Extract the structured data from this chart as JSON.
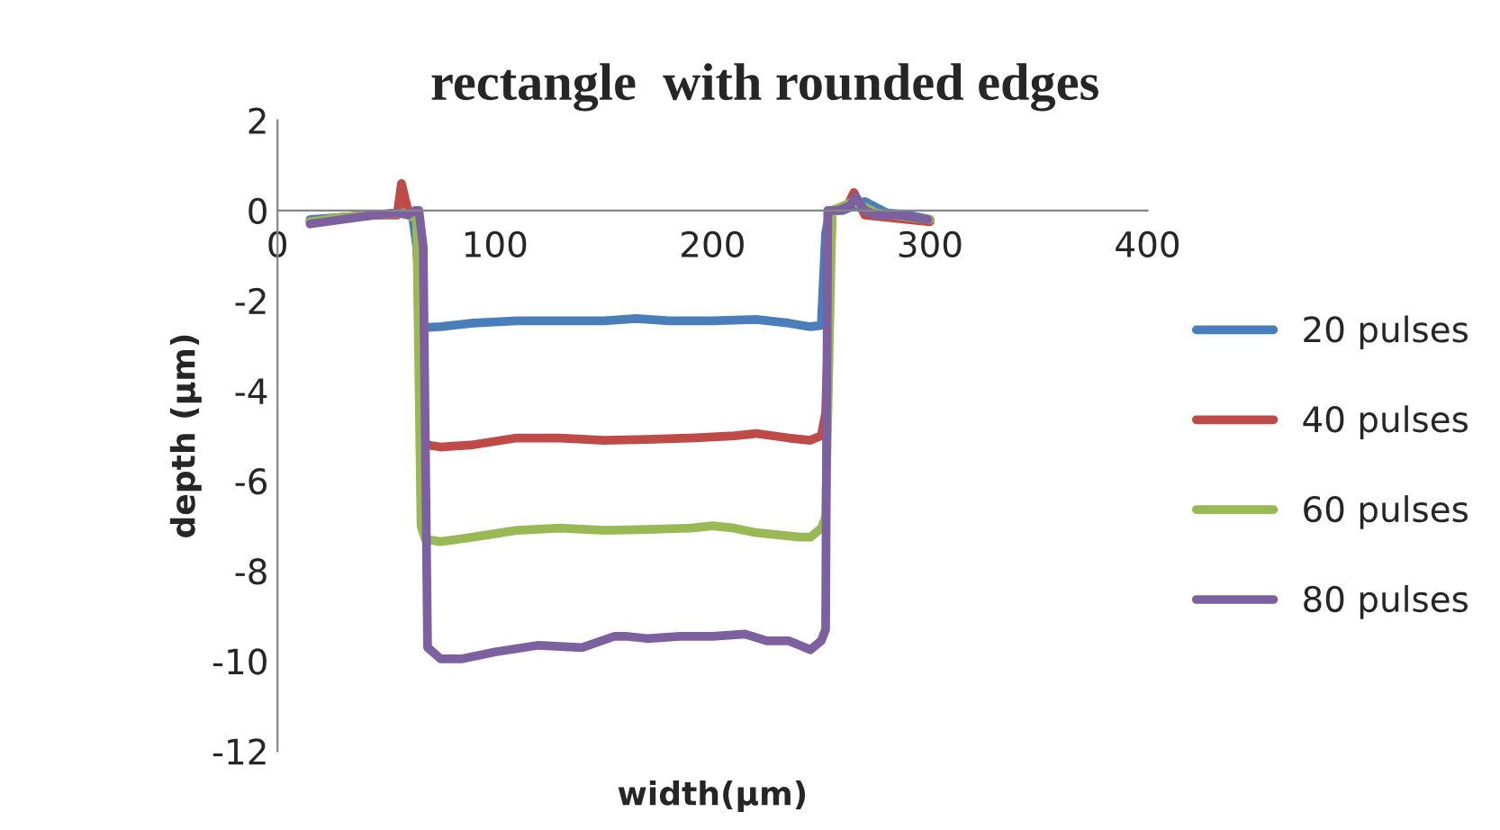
{
  "chart_data": {
    "type": "line",
    "title": "rectangle  with rounded edges",
    "xlabel": "width(µm)",
    "ylabel": "depth (µm)",
    "xlim": [
      0,
      400
    ],
    "xticks": [
      0,
      100,
      200,
      300,
      400
    ],
    "ylim": [
      -12,
      2
    ],
    "yticks": [
      -12,
      -10,
      -8,
      -6,
      -4,
      -2,
      0,
      2
    ],
    "grid": false,
    "legend": "right",
    "marker": "none",
    "line_style": "solid",
    "series": [
      {
        "name": "20 pulses",
        "color": "#4a7ebb",
        "x": [
          15,
          30,
          45,
          58,
          62,
          64,
          66,
          68,
          75,
          90,
          110,
          130,
          150,
          165,
          180,
          200,
          220,
          235,
          245,
          250,
          252,
          254,
          260,
          270,
          280,
          290,
          300
        ],
        "values": [
          -0.2,
          -0.15,
          -0.1,
          -0.05,
          -0.1,
          -0.8,
          -2.6,
          -2.6,
          -2.58,
          -2.5,
          -2.45,
          -2.45,
          -2.45,
          -2.4,
          -2.45,
          -2.45,
          -2.42,
          -2.5,
          -2.58,
          -2.55,
          -0.5,
          0,
          0,
          0.2,
          -0.05,
          -0.1,
          -0.2
        ]
      },
      {
        "name": "40 pulses",
        "color": "#be4b48",
        "x": [
          15,
          30,
          45,
          55,
          57,
          60,
          64,
          66,
          68,
          75,
          90,
          110,
          130,
          150,
          170,
          190,
          210,
          220,
          235,
          245,
          250,
          252,
          255,
          262,
          265,
          270,
          280,
          290,
          300
        ],
        "values": [
          -0.25,
          -0.15,
          -0.1,
          -0.1,
          0.6,
          0,
          -0.1,
          -5.1,
          -5.2,
          -5.25,
          -5.2,
          -5.05,
          -5.05,
          -5.1,
          -5.08,
          -5.05,
          -5.0,
          -4.95,
          -5.05,
          -5.1,
          -5.0,
          -4.5,
          0,
          0.1,
          0.4,
          -0.1,
          -0.15,
          -0.2,
          -0.25
        ]
      },
      {
        "name": "60 pulses",
        "color": "#98b954",
        "x": [
          15,
          30,
          45,
          58,
          64,
          66,
          68,
          75,
          90,
          110,
          130,
          150,
          170,
          190,
          200,
          210,
          220,
          230,
          240,
          245,
          250,
          252,
          255,
          265,
          275,
          290,
          300
        ],
        "values": [
          -0.25,
          -0.15,
          -0.1,
          -0.05,
          -0.2,
          -7.0,
          -7.3,
          -7.35,
          -7.25,
          -7.1,
          -7.05,
          -7.1,
          -7.08,
          -7.05,
          -7.0,
          -7.05,
          -7.15,
          -7.2,
          -7.25,
          -7.25,
          -7.05,
          -6.8,
          0,
          0.2,
          -0.05,
          -0.15,
          -0.2
        ]
      },
      {
        "name": "80 pulses",
        "color": "#7d60a0",
        "x": [
          15,
          30,
          45,
          55,
          60,
          63,
          65,
          67,
          69,
          75,
          85,
          100,
          120,
          140,
          155,
          160,
          170,
          185,
          200,
          215,
          225,
          235,
          245,
          250,
          252,
          253,
          258,
          263,
          266,
          270,
          275,
          285,
          299
        ],
        "values": [
          -0.3,
          -0.2,
          -0.1,
          -0.05,
          -0.1,
          0,
          0,
          -0.8,
          -9.7,
          -9.95,
          -9.95,
          -9.8,
          -9.65,
          -9.7,
          -9.45,
          -9.45,
          -9.5,
          -9.45,
          -9.45,
          -9.4,
          -9.55,
          -9.55,
          -9.75,
          -9.55,
          -9.3,
          0,
          0,
          0.1,
          0.3,
          0,
          -0.1,
          -0.1,
          -0.2
        ]
      }
    ]
  }
}
